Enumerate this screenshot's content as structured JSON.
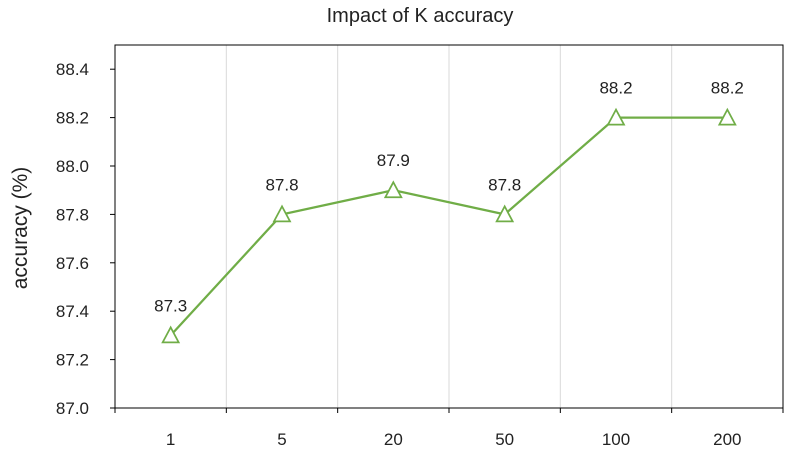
{
  "chart_data": {
    "type": "line",
    "title": "Impact of K accuracy",
    "xlabel": "",
    "ylabel": "accuracy (%)",
    "categories": [
      "1",
      "5",
      "20",
      "50",
      "100",
      "200"
    ],
    "series": [
      {
        "values": [
          87.3,
          87.8,
          87.9,
          87.8,
          88.2,
          88.2
        ],
        "labels": [
          "87.3",
          "87.8",
          "87.9",
          "87.8",
          "88.2",
          "88.2"
        ],
        "color": "#70ad47",
        "marker": "open-triangle"
      }
    ],
    "ylim": [
      87.0,
      88.5
    ],
    "yticks": [
      "87.0",
      "87.2",
      "87.4",
      "87.6",
      "87.8",
      "88.0",
      "88.2",
      "88.4"
    ],
    "grid": "vertical",
    "legend": "none"
  }
}
